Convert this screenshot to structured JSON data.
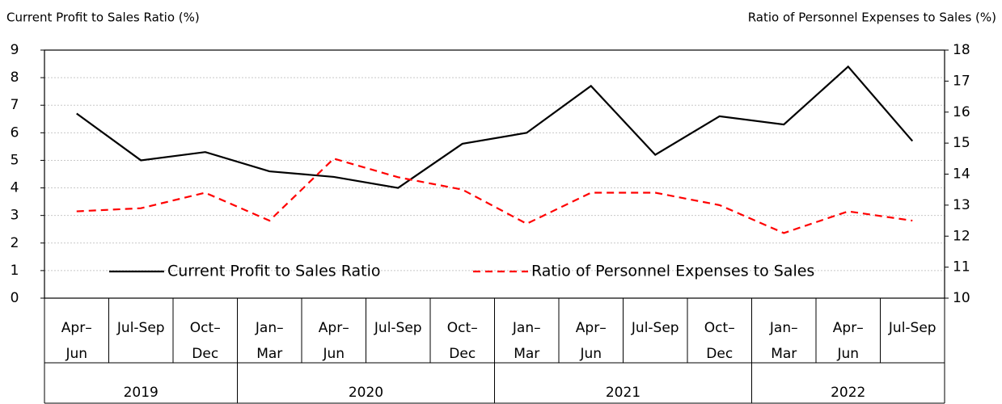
{
  "chart_data": {
    "type": "line",
    "y_label": "Current Profit to Sales Ratio (%)",
    "y2_label": "Ratio of Personnel Expenses to Sales  (%)",
    "categories": [
      [
        "Apr–",
        "Jun"
      ],
      [
        "Jul-Sep"
      ],
      [
        "Oct–",
        "Dec"
      ],
      [
        "Jan–",
        "Mar"
      ],
      [
        "Apr–",
        "Jun"
      ],
      [
        "Jul-Sep"
      ],
      [
        "Oct–",
        "Dec"
      ],
      [
        "Jan–",
        "Mar"
      ],
      [
        "Apr–",
        "Jun"
      ],
      [
        "Jul-Sep"
      ],
      [
        "Oct–",
        "Dec"
      ],
      [
        "Jan–",
        "Mar"
      ],
      [
        "Apr–",
        "Jun"
      ],
      [
        "Jul-Sep"
      ]
    ],
    "groups": [
      {
        "label": "2019",
        "span": 3
      },
      {
        "label": "2020",
        "span": 4
      },
      {
        "label": "2021",
        "span": 4
      },
      {
        "label": "2022",
        "span": 3
      }
    ],
    "series": [
      {
        "name": "Current Profit to Sales Ratio",
        "color": "#000000",
        "dash": false,
        "values": [
          6.7,
          5.0,
          5.3,
          4.6,
          4.4,
          4.0,
          5.6,
          6.0,
          7.7,
          5.2,
          6.6,
          6.3,
          8.4,
          5.7
        ]
      },
      {
        "name": "Ratio of Personnel Expenses to Sales",
        "color": "#ff0000",
        "dash": true,
        "axis": "y2",
        "values": [
          12.8,
          12.9,
          13.4,
          12.5,
          14.5,
          13.9,
          13.5,
          12.4,
          13.4,
          13.4,
          13.0,
          12.1,
          12.8,
          12.5
        ]
      }
    ],
    "ylim": [
      0,
      9
    ],
    "yticks": [
      0,
      1,
      2,
      3,
      4,
      5,
      6,
      7,
      8,
      9
    ],
    "y2lim": [
      10,
      18
    ],
    "y2ticks": [
      10,
      11,
      12,
      13,
      14,
      15,
      16,
      17,
      18
    ],
    "grid": true
  }
}
